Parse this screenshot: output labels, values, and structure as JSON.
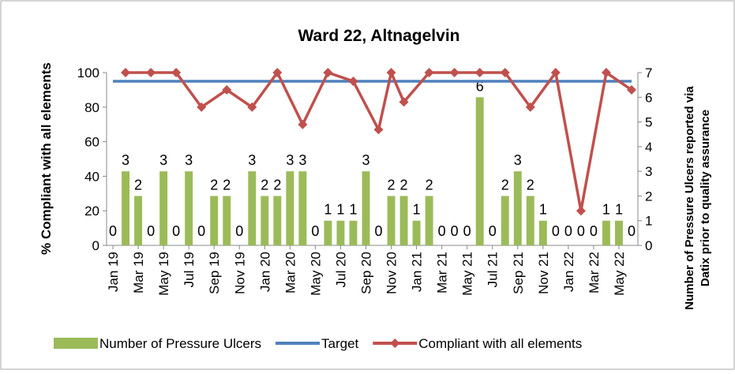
{
  "chart_data": {
    "type": "bar_line",
    "title": "Ward 22, Altnagelvin",
    "y_label": "% Compliant with all elements",
    "y2_label": [
      "Number of Pressure Ulcers reported via",
      "Datix prior to quality assurance"
    ],
    "categories": [
      "Jan 19",
      null,
      "Mar 19",
      null,
      "May 19",
      null,
      "Jul 19",
      null,
      "Sep 19",
      null,
      "Nov 19",
      null,
      "Jan 20",
      null,
      "Mar 20",
      null,
      "May 20",
      null,
      "Jul 20",
      null,
      "Sep 20",
      null,
      "Nov 20",
      null,
      "Jan 21",
      null,
      "Mar 21",
      null,
      "May 21",
      null,
      "Jul 21",
      null,
      "Sep 21",
      null,
      "Nov 21",
      null,
      "Jan 22",
      null,
      "Mar 22",
      null,
      "May 22",
      null
    ],
    "ylim": [
      0,
      100
    ],
    "yticks": [
      0,
      20,
      40,
      60,
      80,
      100
    ],
    "y2lim": [
      0,
      7
    ],
    "y2ticks": [
      0,
      1,
      2,
      3,
      4,
      5,
      6,
      7
    ],
    "legend": "bottom",
    "series": [
      {
        "name": "Number of Pressure Ulcers",
        "kind": "bar",
        "axis": "y2",
        "color": "#9bbb59",
        "values": [
          0,
          3,
          2,
          0,
          3,
          0,
          3,
          0,
          2,
          2,
          0,
          3,
          2,
          2,
          3,
          3,
          0,
          1,
          1,
          1,
          3,
          0,
          2,
          2,
          1,
          2,
          0,
          0,
          0,
          6,
          0,
          2,
          3,
          2,
          1,
          0,
          0,
          0,
          0,
          1,
          1,
          0
        ]
      },
      {
        "name": "Target",
        "kind": "line",
        "color": "#4f81bd",
        "values": [
          95,
          95,
          95,
          95,
          95,
          95,
          95,
          95,
          95,
          95,
          95,
          95,
          95,
          95,
          95,
          95,
          95,
          95,
          95,
          95,
          95,
          95,
          95,
          95,
          95,
          95,
          95,
          95,
          95,
          95,
          95,
          95,
          95,
          95,
          95,
          95,
          95,
          95,
          95,
          95,
          95,
          95
        ]
      },
      {
        "name": "Compliant with all elements",
        "kind": "line",
        "marker": "diamond",
        "connect_nulls": true,
        "color": "#c0504d",
        "values": [
          null,
          100,
          null,
          100,
          null,
          100,
          null,
          80,
          null,
          90,
          null,
          80,
          null,
          100,
          null,
          70,
          null,
          100,
          null,
          95,
          null,
          67,
          100,
          83,
          null,
          100,
          null,
          100,
          null,
          100,
          null,
          100,
          null,
          80,
          null,
          100,
          null,
          20,
          null,
          100,
          null,
          90
        ]
      }
    ]
  }
}
